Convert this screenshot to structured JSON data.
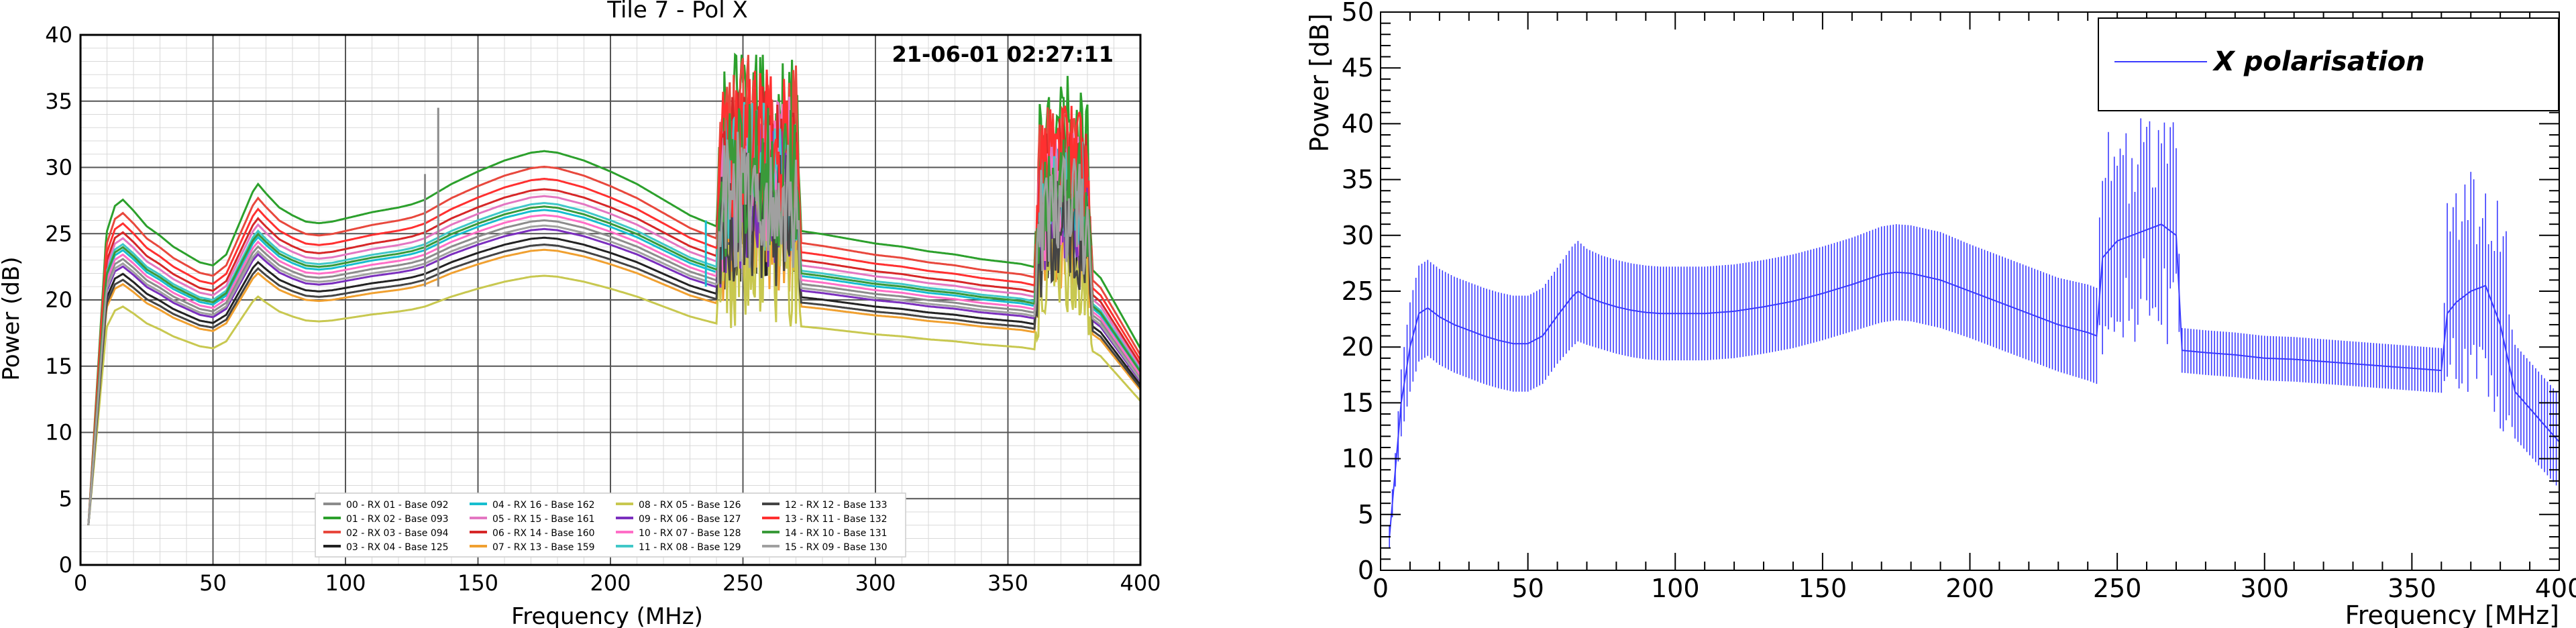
{
  "chart_data": [
    {
      "type": "line",
      "title": "Tile 7 - Pol X",
      "timestamp": "21-06-01 02:27:11",
      "xlabel": "Frequency (MHz)",
      "ylabel": "Power (dB)",
      "xlim": [
        0,
        400
      ],
      "ylim": [
        0,
        40
      ],
      "x_ticks": [
        0,
        50,
        100,
        150,
        200,
        250,
        300,
        350,
        400
      ],
      "y_ticks": [
        0,
        5,
        10,
        15,
        20,
        25,
        30,
        35,
        40
      ],
      "grid": true,
      "legend_position": "bottom-center",
      "spectrum_profile": {
        "x": [
          3,
          5,
          7,
          10,
          13,
          16,
          20,
          25,
          30,
          35,
          40,
          45,
          50,
          55,
          60,
          65,
          67,
          70,
          75,
          80,
          85,
          90,
          95,
          100,
          110,
          120,
          125,
          130,
          135,
          140,
          150,
          160,
          170,
          175,
          180,
          190,
          200,
          210,
          220,
          230,
          240,
          242,
          245,
          250,
          255,
          260,
          265,
          270,
          272,
          280,
          290,
          300,
          310,
          320,
          330,
          340,
          350,
          355,
          360,
          362,
          365,
          370,
          375,
          380,
          382,
          385,
          390,
          395,
          400
        ],
        "offset": [
          -20,
          -10,
          -4,
          0,
          1.6,
          2,
          1.3,
          0.3,
          -0.3,
          -1,
          -1.5,
          -2,
          -2.2,
          -1.5,
          0.5,
          2.5,
          3,
          2.4,
          1.5,
          1,
          0.6,
          0.5,
          0.6,
          0.8,
          1.2,
          1.5,
          1.7,
          2,
          2.5,
          3,
          3.8,
          4.5,
          5,
          5.1,
          5,
          4.5,
          3.8,
          3,
          2,
          1,
          0.3,
          6,
          7,
          7.5,
          7.8,
          7.5,
          7.2,
          7,
          0,
          -0.2,
          -0.5,
          -0.8,
          -1,
          -1.3,
          -1.5,
          -1.8,
          -2,
          -2.1,
          -2.3,
          5,
          6,
          6.3,
          6.5,
          5,
          -2.5,
          -3,
          -4.5,
          -6,
          -7.5
        ],
        "noise": [
          0,
          0,
          0,
          0,
          0,
          0,
          0,
          0,
          0,
          0,
          0,
          0,
          0,
          0,
          0,
          0,
          0,
          0,
          0,
          0,
          0,
          0,
          0,
          0,
          0,
          0,
          0,
          0,
          0,
          0,
          0,
          0,
          0,
          0,
          0,
          0,
          0,
          0,
          0,
          0,
          0,
          4,
          4,
          4,
          4,
          4,
          4,
          4,
          0,
          0,
          0,
          0,
          0,
          0,
          0,
          0,
          0,
          0,
          0,
          3,
          3,
          3,
          3,
          3,
          0,
          0,
          0,
          0,
          0
        ]
      },
      "spikes": [
        {
          "x": 135,
          "y": 34.5
        },
        {
          "x": 130,
          "y": 29.5
        },
        {
          "x": 236,
          "y": 26.0
        }
      ],
      "series": [
        {
          "name": "00 - RX 01 - Base 092",
          "color": "#8c8c8c",
          "base": 21.2
        },
        {
          "name": "01 - RX 02 - Base 093",
          "color": "#2ca02c",
          "base": 25.2
        },
        {
          "name": "02 - RX 03 - Base 094",
          "color": "#e8483d",
          "base": 24.3
        },
        {
          "name": "03 - RX 04 - Base 125",
          "color": "#222222",
          "base": 20.2
        },
        {
          "name": "04 - RX 16 - Base 162",
          "color": "#17becf",
          "base": 21.8
        },
        {
          "name": "05 - RX 15 - Base 161",
          "color": "#e377c2",
          "base": 22.6
        },
        {
          "name": "06 - RX 14 - Base 160",
          "color": "#d62728",
          "base": 23.0
        },
        {
          "name": "07 - RX 13 - Base 159",
          "color": "#f0a030",
          "base": 19.5
        },
        {
          "name": "08 - RX 05 - Base 126",
          "color": "#c8c850",
          "base": 18.0
        },
        {
          "name": "09 - RX 06 - Base 127",
          "color": "#7b2fbe",
          "base": 20.7
        },
        {
          "name": "10 - RX 07 - Base 128",
          "color": "#ff6ec7",
          "base": 21.5
        },
        {
          "name": "11 - RX 08 - Base 129",
          "color": "#40c8c8",
          "base": 22.2
        },
        {
          "name": "12 - RX 12 - Base 133",
          "color": "#444444",
          "base": 19.8
        },
        {
          "name": "13 - RX 11 - Base 132",
          "color": "#ff3030",
          "base": 23.6
        },
        {
          "name": "14 - RX 10 - Base 131",
          "color": "#3a9a3a",
          "base": 22.0
        },
        {
          "name": "15 - RX 09 - Base 130",
          "color": "#a0a0a0",
          "base": 20.9
        }
      ]
    },
    {
      "type": "line",
      "title": "",
      "xlabel": "Frequency [MHz]",
      "ylabel": "Power [dB]",
      "xlim": [
        0,
        400
      ],
      "ylim": [
        0,
        50
      ],
      "x_ticks": [
        0,
        50,
        100,
        150,
        200,
        250,
        300,
        350,
        400
      ],
      "y_ticks": [
        0,
        5,
        10,
        15,
        20,
        25,
        30,
        35,
        40,
        45,
        50
      ],
      "grid": false,
      "legend_position": "top-right",
      "error_bars": true,
      "series": [
        {
          "name": "X polarisation",
          "color": "#3a3aff",
          "x": [
            3,
            5,
            7,
            10,
            13,
            16,
            20,
            25,
            30,
            35,
            40,
            45,
            50,
            55,
            60,
            65,
            67,
            70,
            75,
            80,
            85,
            90,
            95,
            100,
            110,
            120,
            130,
            140,
            150,
            160,
            170,
            175,
            180,
            190,
            200,
            210,
            220,
            230,
            240,
            243,
            245,
            250,
            255,
            260,
            265,
            270,
            272,
            280,
            290,
            300,
            310,
            320,
            330,
            340,
            350,
            355,
            360,
            362,
            365,
            370,
            375,
            380,
            385,
            390,
            395,
            400
          ],
          "y": [
            3,
            9,
            15,
            20,
            23,
            23.5,
            22.7,
            22.0,
            21.5,
            21.0,
            20.6,
            20.3,
            20.3,
            21.0,
            22.8,
            24.5,
            25.0,
            24.5,
            24.0,
            23.6,
            23.3,
            23.1,
            23.0,
            23.0,
            23.0,
            23.2,
            23.6,
            24.1,
            24.8,
            25.6,
            26.5,
            26.7,
            26.6,
            26.0,
            25.0,
            24.0,
            23.0,
            22.0,
            21.3,
            21.0,
            28,
            29.5,
            30,
            30.5,
            31,
            30,
            19.7,
            19.5,
            19.3,
            19.0,
            18.9,
            18.7,
            18.5,
            18.3,
            18.1,
            18.0,
            17.9,
            23,
            24,
            25,
            25.5,
            22,
            16.0,
            14.5,
            13.0,
            11.5
          ],
          "err": [
            1,
            1.5,
            3,
            4,
            4.3,
            4.3,
            4.3,
            4.3,
            4.3,
            4.3,
            4.3,
            4.3,
            4.3,
            4.3,
            4.3,
            4.5,
            4.5,
            4.3,
            4.2,
            4.2,
            4.2,
            4.2,
            4.2,
            4.2,
            4.2,
            4.2,
            4.2,
            4.2,
            4.2,
            4.2,
            4.3,
            4.3,
            4.3,
            4.3,
            4.2,
            4.2,
            4.2,
            4.2,
            4.3,
            4.3,
            5,
            5,
            5,
            5,
            5,
            5,
            2.0,
            2.0,
            2.0,
            2.0,
            2.0,
            2.0,
            2.0,
            2.0,
            2.0,
            2.0,
            2.0,
            5,
            5,
            5,
            5,
            5,
            4.2,
            4.2,
            4.2,
            4.2
          ]
        }
      ]
    }
  ]
}
